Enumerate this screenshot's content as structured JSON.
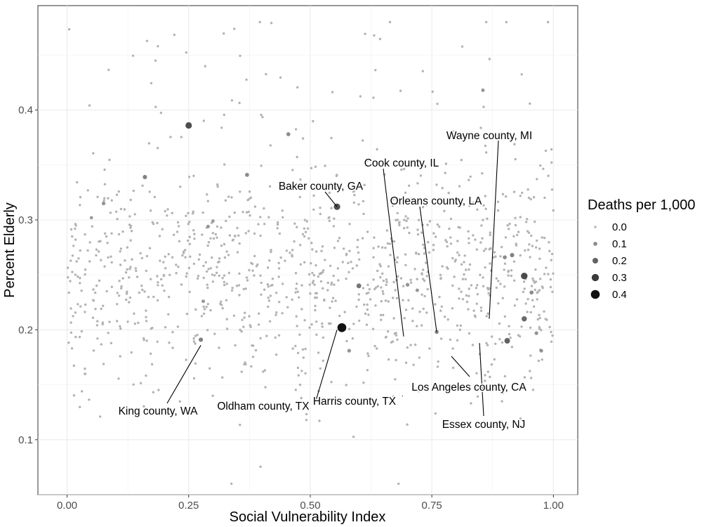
{
  "chart_data": {
    "type": "scatter",
    "xlabel": "Social Vulnerability Index",
    "ylabel": "Percent Elderly",
    "xlim": [
      -0.06,
      1.05
    ],
    "ylim": [
      0.05,
      0.495
    ],
    "x_ticks": [
      {
        "value": 0.0,
        "label": "0.00"
      },
      {
        "value": 0.25,
        "label": "0.25"
      },
      {
        "value": 0.5,
        "label": "0.50"
      },
      {
        "value": 0.75,
        "label": "0.75"
      },
      {
        "value": 1.0,
        "label": "1.00"
      }
    ],
    "y_ticks": [
      {
        "value": 0.1,
        "label": "0.1"
      },
      {
        "value": 0.2,
        "label": "0.2"
      },
      {
        "value": 0.3,
        "label": "0.3"
      },
      {
        "value": 0.4,
        "label": "0.4"
      }
    ],
    "grid": true,
    "legend": {
      "title": "Deaths per 1,000",
      "placement": "right",
      "entries": [
        {
          "label": "0.0",
          "value": 0.0
        },
        {
          "label": "0.1",
          "value": 0.1
        },
        {
          "label": "0.2",
          "value": 0.2
        },
        {
          "label": "0.3",
          "value": 0.3
        },
        {
          "label": "0.4",
          "value": 0.4
        }
      ]
    },
    "size_color_scale": {
      "domain": [
        0,
        0.4
      ],
      "color_low": "#b3b3b3",
      "color_high": "#111111"
    },
    "background_points": {
      "count": 1150,
      "x_range": [
        0.0,
        1.0
      ],
      "y_center": 0.245,
      "y_spread": 0.05,
      "y_range": [
        0.06,
        0.48
      ],
      "deaths_per_1000": 0.0
    },
    "highlight_points": [
      {
        "x": 0.565,
        "y": 0.202,
        "deaths": 0.4
      },
      {
        "x": 0.555,
        "y": 0.312,
        "deaths": 0.25
      },
      {
        "x": 0.25,
        "y": 0.386,
        "deaths": 0.25
      },
      {
        "x": 0.94,
        "y": 0.249,
        "deaths": 0.26
      },
      {
        "x": 0.905,
        "y": 0.19,
        "deaths": 0.2
      },
      {
        "x": 0.94,
        "y": 0.21,
        "deaths": 0.18
      },
      {
        "x": 0.6,
        "y": 0.24,
        "deaths": 0.15
      },
      {
        "x": 0.16,
        "y": 0.339,
        "deaths": 0.12
      },
      {
        "x": 0.37,
        "y": 0.341,
        "deaths": 0.1
      },
      {
        "x": 0.455,
        "y": 0.378,
        "deaths": 0.1
      },
      {
        "x": 0.275,
        "y": 0.191,
        "deaths": 0.12
      },
      {
        "x": 0.915,
        "y": 0.268,
        "deaths": 0.12
      },
      {
        "x": 0.9,
        "y": 0.266,
        "deaths": 0.1
      },
      {
        "x": 0.955,
        "y": 0.234,
        "deaths": 0.1
      },
      {
        "x": 0.965,
        "y": 0.197,
        "deaths": 0.08
      },
      {
        "x": 0.975,
        "y": 0.181,
        "deaths": 0.08
      },
      {
        "x": 0.76,
        "y": 0.198,
        "deaths": 0.1
      },
      {
        "x": 0.075,
        "y": 0.315,
        "deaths": 0.08
      },
      {
        "x": 0.05,
        "y": 0.302,
        "deaths": 0.06
      },
      {
        "x": 0.29,
        "y": 0.294,
        "deaths": 0.07
      },
      {
        "x": 0.3,
        "y": 0.299,
        "deaths": 0.06
      },
      {
        "x": 0.7,
        "y": 0.241,
        "deaths": 0.08
      },
      {
        "x": 0.72,
        "y": 0.236,
        "deaths": 0.07
      },
      {
        "x": 0.58,
        "y": 0.181,
        "deaths": 0.08
      },
      {
        "x": 0.855,
        "y": 0.418,
        "deaths": 0.07
      },
      {
        "x": 0.28,
        "y": 0.226,
        "deaths": 0.07
      }
    ],
    "annotations": [
      {
        "label": "Wayne county, MI",
        "x": 0.868,
        "y": 0.21
      },
      {
        "label": "Cook county, IL",
        "x": 0.692,
        "y": 0.194
      },
      {
        "label": "Orleans county, LA",
        "x": 0.76,
        "y": 0.198
      },
      {
        "label": "Baker county, GA",
        "x": 0.555,
        "y": 0.312
      },
      {
        "label": "King county, WA",
        "x": 0.275,
        "y": 0.186
      },
      {
        "label": "Oldham county, TX",
        "x": 0.555,
        "y": 0.2
      },
      {
        "label": "Harris county, TX",
        "x": 0.69,
        "y": 0.14
      },
      {
        "label": "Los Angeles county, CA",
        "x": 0.79,
        "y": 0.176
      },
      {
        "label": "Essex county, NJ",
        "x": 0.848,
        "y": 0.188
      }
    ]
  }
}
